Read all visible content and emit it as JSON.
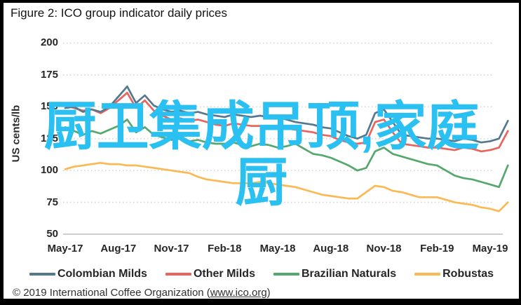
{
  "figure": {
    "title": "Figure 2: ICO group indicator daily prices",
    "footer": {
      "prefix": "© 2019 International Coffee Organization (",
      "link": "www.ico.org",
      "suffix": ")"
    }
  },
  "watermark": {
    "line1": "厨卫集成吊顶,家庭",
    "line2": "厨",
    "color": "#2BC0F2"
  },
  "chart_data": {
    "type": "line",
    "title": "Figure 2: ICO group indicator daily prices",
    "xlabel": "",
    "ylabel": "US cents/lb",
    "ylim": [
      50,
      200
    ],
    "yticks": [
      200,
      175,
      150,
      125,
      100,
      75,
      50
    ],
    "x_tick_labels": [
      "May-17",
      "Aug-17",
      "Nov-17",
      "Feb-18",
      "May-18",
      "Aug-18",
      "Nov-18",
      "Feb-19",
      "May-19"
    ],
    "x_tick_months": [
      0,
      3,
      6,
      9,
      12,
      15,
      18,
      21,
      24
    ],
    "grid": "horizontal-dotted",
    "legend_position": "bottom",
    "x_months": [
      0,
      0.5,
      1,
      1.5,
      2,
      2.5,
      3,
      3.5,
      4,
      4.5,
      5,
      5.5,
      6,
      6.5,
      7,
      7.5,
      8,
      8.5,
      9,
      9.5,
      10,
      10.5,
      11,
      11.5,
      12,
      12.5,
      13,
      13.5,
      14,
      14.5,
      15,
      15.5,
      16,
      16.5,
      17,
      17.5,
      18,
      18.5,
      19,
      19.5,
      20,
      20.5,
      21,
      21.5,
      22,
      22.5,
      23,
      23.5,
      24,
      24.5,
      25
    ],
    "series": [
      {
        "name": "Colombian Milds",
        "color": "#54798E",
        "values": [
          149,
          150,
          146,
          148,
          146,
          150,
          158,
          166,
          153,
          159,
          151,
          148,
          146,
          147,
          145,
          146,
          144,
          143,
          142,
          144,
          143,
          142,
          143,
          142,
          142,
          140,
          138,
          137,
          136,
          134,
          133,
          130,
          127,
          125,
          128,
          145,
          148,
          138,
          128,
          127,
          126,
          125,
          125,
          124,
          123,
          125,
          124,
          122,
          123,
          125,
          139
        ]
      },
      {
        "name": "Other Milds",
        "color": "#E8645C",
        "values": [
          151,
          149,
          147,
          148,
          145,
          149,
          155,
          161,
          149,
          155,
          147,
          143,
          140,
          141,
          139,
          140,
          138,
          136,
          135,
          137,
          136,
          135,
          135,
          134,
          134,
          133,
          132,
          131,
          130,
          128,
          127,
          124,
          122,
          121,
          122,
          138,
          140,
          130,
          121,
          120,
          119,
          118,
          118,
          117,
          116,
          118,
          117,
          115,
          116,
          118,
          131
        ]
      },
      {
        "name": "Brazilian Naturals",
        "color": "#55A86C",
        "values": [
          134,
          131,
          128,
          131,
          129,
          132,
          135,
          140,
          130,
          134,
          128,
          126,
          124,
          125,
          123,
          124,
          122,
          121,
          121,
          122,
          120,
          119,
          121,
          120,
          118,
          119,
          121,
          117,
          113,
          112,
          110,
          107,
          104,
          100,
          102,
          115,
          118,
          113,
          111,
          109,
          107,
          105,
          104,
          100,
          96,
          94,
          93,
          91,
          89,
          87,
          104
        ]
      },
      {
        "name": "Robustas",
        "color": "#FBB954",
        "values": [
          101,
          103,
          104,
          105,
          106,
          105,
          105,
          104,
          104,
          103,
          102,
          101,
          100,
          99,
          98,
          95,
          93,
          92,
          91,
          90,
          90,
          90,
          91,
          90,
          89,
          88,
          87,
          85,
          83,
          81,
          80,
          79,
          78,
          78,
          83,
          88,
          87,
          84,
          83,
          81,
          79,
          79,
          79,
          77,
          75,
          74,
          73,
          71,
          70,
          68,
          75
        ]
      }
    ]
  }
}
